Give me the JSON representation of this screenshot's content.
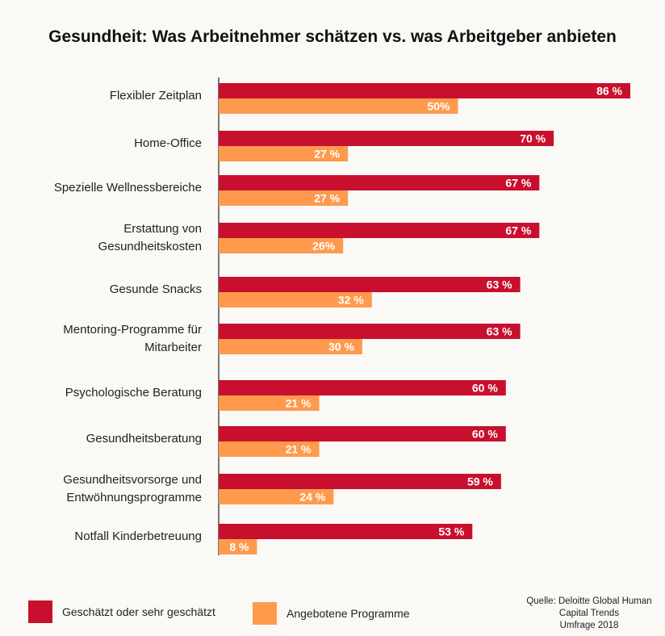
{
  "chart_data": {
    "type": "bar",
    "orientation": "horizontal",
    "title": "Gesundheit: Was Arbeitnehmer schätzen vs. was Arbeitgeber anbieten",
    "categories": [
      "Flexibler Zeitplan",
      "Home-Office",
      "Spezielle Wellnessbereiche",
      "Erstattung von\nGesundheitskosten",
      "Gesunde Snacks",
      "Mentoring-Programme für\nMitarbeiter",
      "Psychologische Beratung",
      "Gesundheitsberatung",
      "Gesundheitsvorsorge und\nEntwöhnungsprogramme",
      "Notfall Kinderbetreuung"
    ],
    "series": [
      {
        "name": "Geschätzt oder sehr geschätzt",
        "color": "#c8102e",
        "values": [
          86,
          70,
          67,
          67,
          63,
          63,
          60,
          60,
          59,
          53
        ],
        "labels": [
          "86 %",
          "70 %",
          "67 %",
          "67 %",
          "63 %",
          "63 %",
          "60 %",
          "60 %",
          "59 %",
          "53 %"
        ]
      },
      {
        "name": "Angebotene Programme",
        "color": "#ff9a4d",
        "values": [
          50,
          27,
          27,
          26,
          32,
          30,
          21,
          21,
          24,
          8
        ],
        "labels": [
          "50%",
          "27 %",
          "27 %",
          "26%",
          "32 %",
          "30 %",
          "21 %",
          "21 %",
          "24 %",
          "8 %"
        ]
      }
    ],
    "xlim": [
      0,
      90
    ],
    "legend_position": "bottom-left",
    "source": "Quelle: Deloitte Global Human\nCapital Trends\nUmfrage 2018"
  }
}
